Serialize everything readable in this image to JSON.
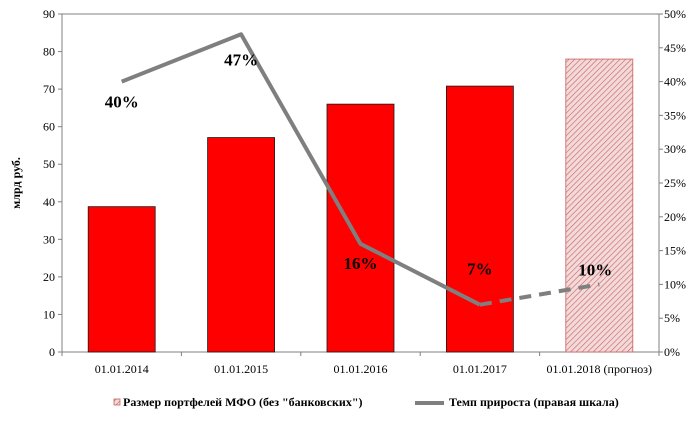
{
  "chart_data": {
    "type": "bar+line",
    "ylabel": "млрд руб.",
    "categories": [
      "01.01.2014",
      "01.01.2015",
      "01.01.2016",
      "01.01.2017",
      "01.01.2018 (прогноз)"
    ],
    "y_left": {
      "min": 0,
      "max": 90,
      "step": 10,
      "ticks": [
        "0",
        "10",
        "20",
        "30",
        "40",
        "50",
        "60",
        "70",
        "80",
        "90"
      ]
    },
    "y_right": {
      "min": 0,
      "max": 50,
      "step": 5,
      "ticks": [
        "0%",
        "5%",
        "10%",
        "15%",
        "20%",
        "25%",
        "30%",
        "35%",
        "40%",
        "45%",
        "50%"
      ]
    },
    "series": [
      {
        "name": "Размер портфелей МФО (без \"банковских\")",
        "type": "bar",
        "axis": "left",
        "values": [
          38.7,
          57.1,
          66.0,
          70.8,
          78.0
        ],
        "forecast_index": 4,
        "color": "#ff0000",
        "forecast_color": "#d98b8b"
      },
      {
        "name": "Темп прироста (правая шкала)",
        "type": "line",
        "axis": "right",
        "values": [
          40,
          47,
          16,
          7,
          10
        ],
        "labels": [
          "40%",
          "47%",
          "16%",
          "7%",
          "10%"
        ],
        "dashed_from_index": 3,
        "color": "#7f7f7f"
      }
    ],
    "grid": false,
    "legend_position": "bottom"
  }
}
